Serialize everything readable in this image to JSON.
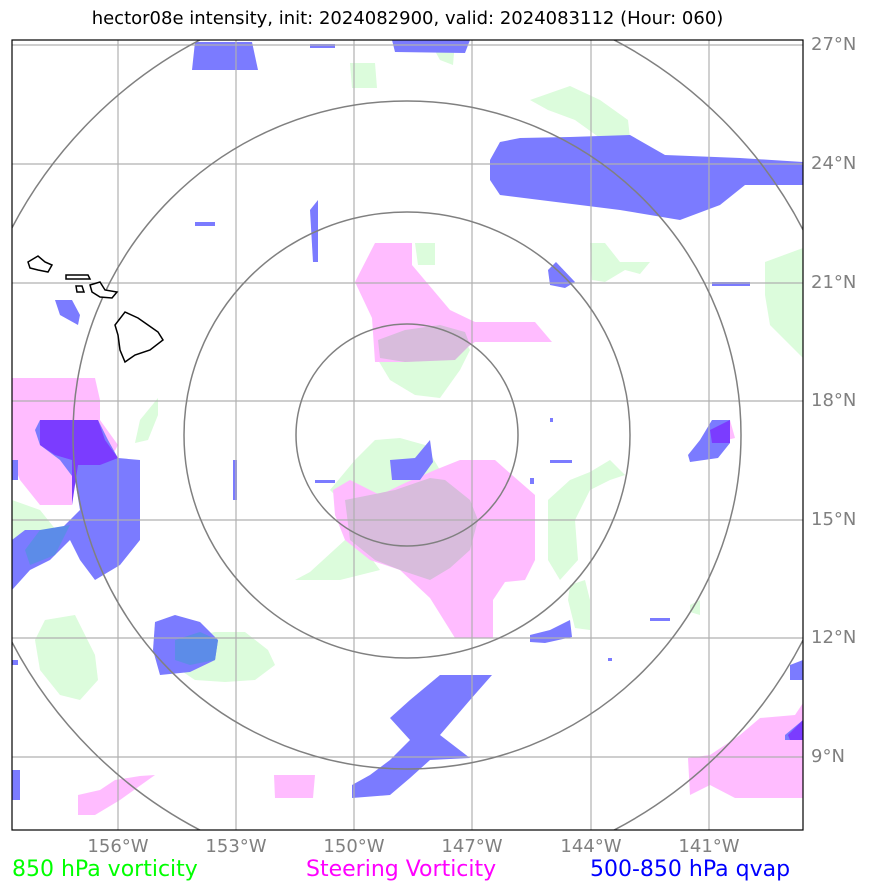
{
  "title": "hector08e intensity, init: 2024082900, valid: 2024083112 (Hour: 060)",
  "latitude_labels": [
    "27°N",
    "24°N",
    "21°N",
    "18°N",
    "15°N",
    "12°N",
    "9°N"
  ],
  "longitude_labels": [
    "156°W",
    "153°W",
    "150°W",
    "147°W",
    "144°W",
    "141°W"
  ],
  "legend": [
    {
      "label": "850 hPa vorticity",
      "color": "#00ff00"
    },
    {
      "label": "Steering Vorticity",
      "color": "#ff00ff"
    },
    {
      "label": "500-850 hPa qvap",
      "color": "#0000ff"
    }
  ],
  "colors": {
    "vorticity_850_fill": "#dcfcdc",
    "steering_vorticity_fill": "#ffbcff",
    "qvap_fill": "#7b7bff",
    "range_rings": "#808080",
    "gridlines": "#b0b0b0",
    "coastline": "#000000"
  }
}
